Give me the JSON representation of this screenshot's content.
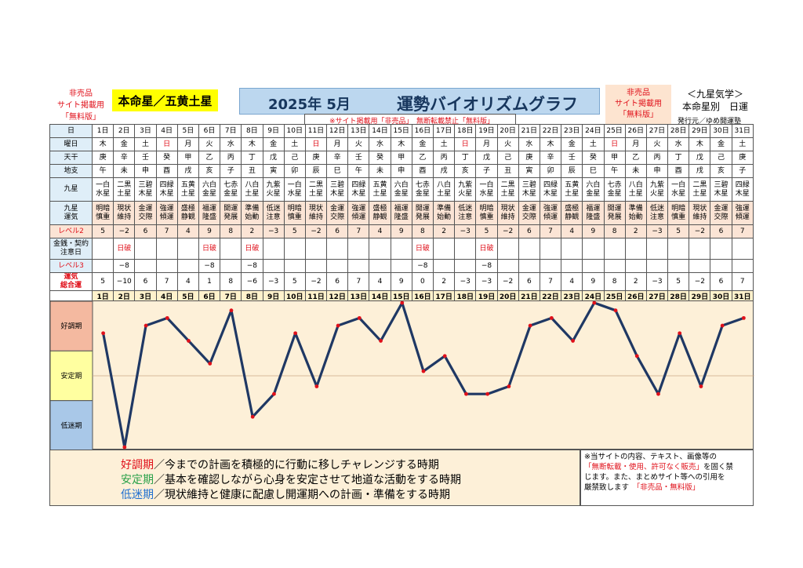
{
  "header": {
    "left_note": [
      "非売品",
      "サイト掲載用",
      "「無料版」"
    ],
    "honmei": "本命星／五黄土星",
    "title_date": "2025年 5月",
    "title_main": "運勢バイオリズムグラフ",
    "right_note": [
      "非売品",
      "サイト掲載用",
      "「無料版」"
    ],
    "kyusei": "＜九星気学＞",
    "kyusei_sub": "本命星別　日運",
    "publisher": "発行元／ゆめ開運塾",
    "notice": "※サイト掲載用「非売品」　無断転載禁止「無料版」"
  },
  "row_labels": {
    "day": "日",
    "weekday": "曜日",
    "tenkan": "天干",
    "chishi": "地支",
    "kyusei": "九星",
    "unki": [
      "九星",
      "運気"
    ],
    "level2": "レベル2",
    "kin": [
      "金銭・契約",
      "注意日"
    ],
    "level3": "レベル3",
    "sogo": [
      "運気",
      "総合運"
    ]
  },
  "days": [
    "1日",
    "2日",
    "3日",
    "4日",
    "5日",
    "6日",
    "7日",
    "8日",
    "9日",
    "10日",
    "11日",
    "12日",
    "13日",
    "14日",
    "15日",
    "16日",
    "17日",
    "18日",
    "19日",
    "20日",
    "21日",
    "22日",
    "23日",
    "24日",
    "25日",
    "26日",
    "27日",
    "28日",
    "29日",
    "30日",
    "31日"
  ],
  "weekdays": [
    "木",
    "金",
    "土",
    "日",
    "月",
    "火",
    "水",
    "木",
    "金",
    "土",
    "日",
    "月",
    "火",
    "水",
    "木",
    "金",
    "土",
    "日",
    "月",
    "火",
    "水",
    "木",
    "金",
    "土",
    "日",
    "月",
    "火",
    "水",
    "木",
    "金",
    "土"
  ],
  "weekday_red": [
    3,
    10,
    17,
    24
  ],
  "tenkan": [
    "庚",
    "辛",
    "壬",
    "癸",
    "甲",
    "乙",
    "丙",
    "丁",
    "戊",
    "己",
    "庚",
    "辛",
    "壬",
    "癸",
    "甲",
    "乙",
    "丙",
    "丁",
    "戊",
    "己",
    "庚",
    "辛",
    "壬",
    "癸",
    "甲",
    "乙",
    "丙",
    "丁",
    "戊",
    "己",
    "庚"
  ],
  "chishi": [
    "午",
    "未",
    "申",
    "酉",
    "戌",
    "亥",
    "子",
    "丑",
    "寅",
    "卯",
    "辰",
    "巳",
    "午",
    "未",
    "申",
    "酉",
    "戌",
    "亥",
    "子",
    "丑",
    "寅",
    "卯",
    "辰",
    "巳",
    "午",
    "未",
    "申",
    "酉",
    "戌",
    "亥",
    "子"
  ],
  "kyusei": [
    [
      "一白",
      "水星"
    ],
    [
      "二黒",
      "土星"
    ],
    [
      "三碧",
      "木星"
    ],
    [
      "四緑",
      "木星"
    ],
    [
      "五黄",
      "土星"
    ],
    [
      "六白",
      "金星"
    ],
    [
      "七赤",
      "金星"
    ],
    [
      "八白",
      "土星"
    ],
    [
      "九紫",
      "火星"
    ],
    [
      "一白",
      "水星"
    ],
    [
      "二黒",
      "土星"
    ],
    [
      "三碧",
      "木星"
    ],
    [
      "四緑",
      "木星"
    ],
    [
      "五黄",
      "土星"
    ],
    [
      "六白",
      "金星"
    ],
    [
      "七赤",
      "金星"
    ],
    [
      "八白",
      "土星"
    ],
    [
      "九紫",
      "火星"
    ],
    [
      "一白",
      "水星"
    ],
    [
      "二黒",
      "土星"
    ],
    [
      "三碧",
      "木星"
    ],
    [
      "四緑",
      "木星"
    ],
    [
      "五黄",
      "土星"
    ],
    [
      "六白",
      "金星"
    ],
    [
      "七赤",
      "金星"
    ],
    [
      "八白",
      "土星"
    ],
    [
      "九紫",
      "火星"
    ],
    [
      "一白",
      "水星"
    ],
    [
      "二黒",
      "土星"
    ],
    [
      "三碧",
      "木星"
    ],
    [
      "四緑",
      "木星"
    ]
  ],
  "unki": [
    [
      "明暗",
      "慎重"
    ],
    [
      "現状",
      "維持"
    ],
    [
      "金運",
      "交際"
    ],
    [
      "強運",
      "傾運"
    ],
    [
      "盛極",
      "静観"
    ],
    [
      "福運",
      "隆盛"
    ],
    [
      "開運",
      "発展"
    ],
    [
      "準備",
      "始動"
    ],
    [
      "低迷",
      "注意"
    ],
    [
      "明暗",
      "慎重"
    ],
    [
      "現状",
      "維持"
    ],
    [
      "金運",
      "交際"
    ],
    [
      "強運",
      "傾運"
    ],
    [
      "盛極",
      "静観"
    ],
    [
      "福運",
      "隆盛"
    ],
    [
      "開運",
      "発展"
    ],
    [
      "準備",
      "始動"
    ],
    [
      "低迷",
      "注意"
    ],
    [
      "明暗",
      "慎重"
    ],
    [
      "現状",
      "維持"
    ],
    [
      "金運",
      "交際"
    ],
    [
      "強運",
      "傾運"
    ],
    [
      "盛極",
      "静観"
    ],
    [
      "福運",
      "隆盛"
    ],
    [
      "開運",
      "発展"
    ],
    [
      "準備",
      "始動"
    ],
    [
      "低迷",
      "注意"
    ],
    [
      "明暗",
      "慎重"
    ],
    [
      "現状",
      "維持"
    ],
    [
      "金運",
      "交際"
    ],
    [
      "強運",
      "傾運"
    ]
  ],
  "level2": [
    "5",
    "−2",
    "6",
    "7",
    "4",
    "9",
    "8",
    "2",
    "−3",
    "5",
    "−2",
    "6",
    "7",
    "4",
    "9",
    "8",
    "2",
    "−3",
    "5",
    "−2",
    "6",
    "7",
    "4",
    "9",
    "8",
    "2",
    "−3",
    "5",
    "−2",
    "6",
    "7"
  ],
  "kin": [
    "",
    "日破",
    "",
    "",
    "",
    "日破",
    "",
    "日破",
    "",
    "",
    "",
    "",
    "",
    "",
    "",
    "日破",
    "",
    "",
    "日破",
    "",
    "",
    "",
    "",
    "",
    "",
    "",
    "",
    "",
    "",
    "",
    ""
  ],
  "level3": [
    "",
    "−8",
    "",
    "",
    "",
    "−8",
    "",
    "−8",
    "",
    "",
    "",
    "",
    "",
    "",
    "",
    "−8",
    "",
    "",
    "−8",
    "",
    "",
    "",
    "",
    "",
    "",
    "",
    "",
    "",
    "",
    "",
    ""
  ],
  "sogo": [
    "5",
    "−10",
    "6",
    "7",
    "4",
    "1",
    "8",
    "−6",
    "−3",
    "5",
    "−2",
    "6",
    "7",
    "4",
    "9",
    "0",
    "2",
    "−3",
    "−3",
    "−2",
    "6",
    "7",
    "4",
    "9",
    "8",
    "2",
    "−3",
    "5",
    "−2",
    "6",
    "7"
  ],
  "chart_data": {
    "type": "line",
    "categories": [
      "1日",
      "2日",
      "3日",
      "4日",
      "5日",
      "6日",
      "7日",
      "8日",
      "9日",
      "10日",
      "11日",
      "12日",
      "13日",
      "14日",
      "15日",
      "16日",
      "17日",
      "18日",
      "19日",
      "20日",
      "21日",
      "22日",
      "23日",
      "24日",
      "25日",
      "26日",
      "27日",
      "28日",
      "29日",
      "30日",
      "31日"
    ],
    "series": [
      {
        "values": [
          5,
          -10,
          6,
          7,
          4,
          1,
          8,
          -6,
          -3,
          5,
          -2,
          6,
          7,
          4,
          9,
          0,
          2,
          -3,
          -3,
          -2,
          6,
          7,
          4,
          9,
          8,
          2,
          -3,
          5,
          -2,
          6,
          7
        ]
      }
    ],
    "ylim": [
      -10,
      9
    ],
    "bands": [
      "好調期",
      "安定期",
      "低迷期"
    ],
    "band_colors": [
      "#f4b9a0",
      "#ffffa0",
      "#a9c8e8"
    ],
    "line_color": "#1f3864",
    "marker_color": "#e0101a"
  },
  "legend": [
    {
      "term": "好調期",
      "text": "／今までの計画を積極的に行動に移しチャレンジする時期",
      "color": "#e0101a"
    },
    {
      "term": "安定期",
      "text": "／基本を確認しながら心身を安定させて地道な活動をする時期",
      "color": "#2aa14a"
    },
    {
      "term": "低迷期",
      "text": "／現状維持と健康に配慮し開運期への計画・準備をする時期",
      "color": "#1f6fd0"
    }
  ],
  "note": {
    "line1": "※当サイトの内容、テキスト、画像等の",
    "line2_red": "「無断転載・使用、許可なく販売」",
    "line2_rest": "を固く禁",
    "line3": "じます。また、まとめサイト等への引用を",
    "line4": "厳禁致します",
    "line4_red": "「非売品・無料版」"
  }
}
